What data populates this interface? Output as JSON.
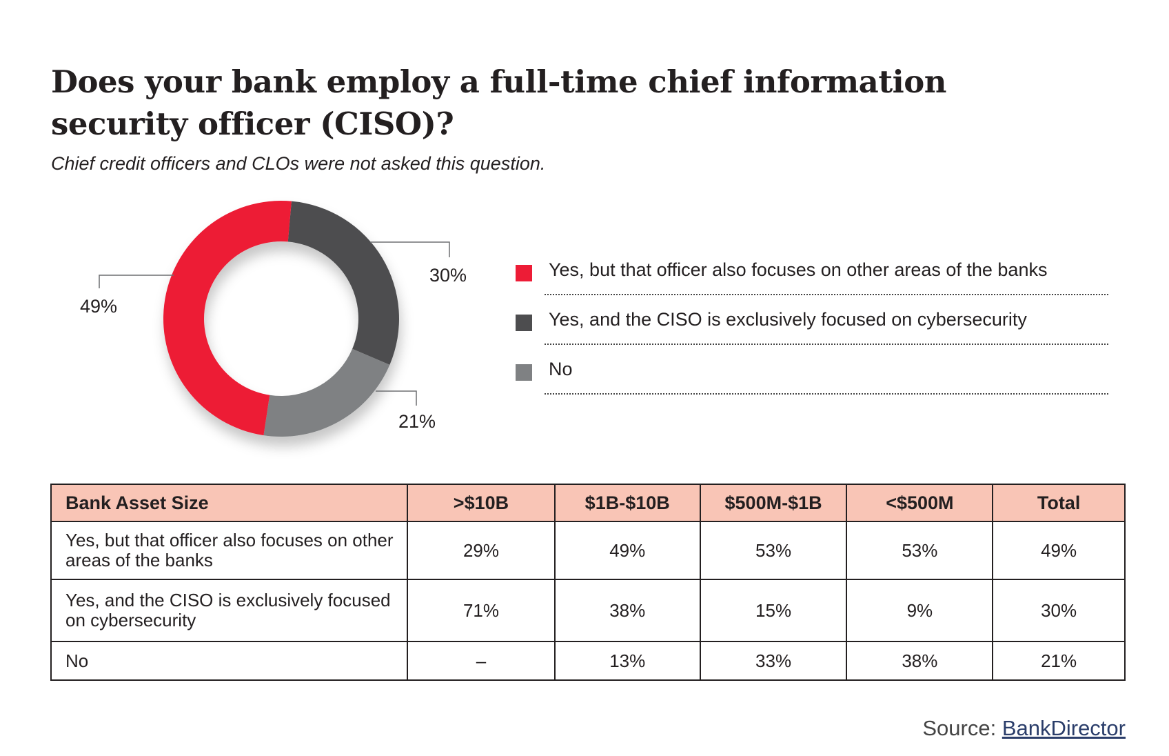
{
  "title": "Does your bank employ a  full-time chief information security officer (CISO)?",
  "subtitle": "Chief credit officers and CLOs were not asked this question.",
  "chart_data": {
    "type": "pie",
    "donut": true,
    "categories": [
      "Yes, but that officer also focuses on other areas of the banks",
      "Yes, and the CISO is exclusively focused on cybersecurity",
      "No"
    ],
    "values": [
      49,
      30,
      21
    ],
    "value_labels": [
      "49%",
      "30%",
      "21%"
    ],
    "colors": [
      "#ed1c36",
      "#4d4d4f",
      "#7f8183"
    ],
    "legend_position": "right"
  },
  "table": {
    "headers": [
      "Bank Asset Size",
      ">$10B",
      "$1B-$10B",
      "$500M-$1B",
      "<$500M",
      "Total"
    ],
    "rows": [
      {
        "label": "Yes, but that officer also focuses on other areas of the banks",
        "cells": [
          "29%",
          "49%",
          "53%",
          "53%",
          "49%"
        ]
      },
      {
        "label": "Yes, and the CISO is exclusively focused on cybersecurity",
        "cells": [
          "71%",
          "38%",
          "15%",
          "9%",
          "30%"
        ]
      },
      {
        "label": "No",
        "cells": [
          "–",
          "13%",
          "33%",
          "38%",
          "21%"
        ]
      }
    ]
  },
  "source": {
    "prefix": "Source: ",
    "link": "BankDirector"
  },
  "colors": {
    "header_fill": "#f9c5b6",
    "text": "#231f20"
  }
}
